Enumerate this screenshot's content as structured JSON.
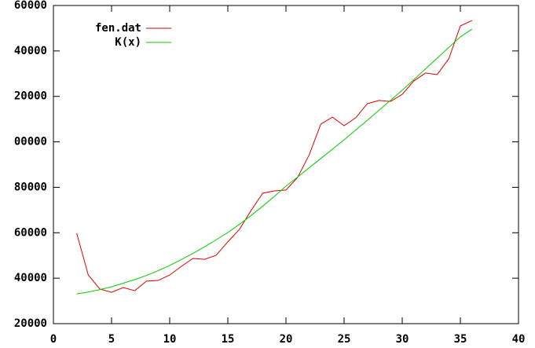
{
  "chart_data": {
    "type": "line",
    "x": [
      2,
      3,
      4,
      5,
      6,
      7,
      8,
      9,
      10,
      11,
      12,
      13,
      14,
      15,
      16,
      17,
      18,
      19,
      20,
      21,
      22,
      23,
      24,
      25,
      26,
      27,
      28,
      29,
      30,
      31,
      32,
      33,
      34,
      35,
      36
    ],
    "series": [
      {
        "name": "fen.dat",
        "color": "#dd0000",
        "values": [
          59800,
          41400,
          35200,
          33800,
          35900,
          34500,
          38700,
          39000,
          41400,
          45200,
          48700,
          48300,
          50100,
          56000,
          61500,
          69800,
          77400,
          78400,
          78800,
          84300,
          94300,
          107800,
          110900,
          107100,
          110600,
          116800,
          118200,
          117800,
          120900,
          126800,
          130300,
          129600,
          136500,
          151000,
          153400
        ]
      },
      {
        "name": "K(x)",
        "color": "#00cc00",
        "values": [
          33100,
          33900,
          35000,
          36200,
          37800,
          39400,
          41200,
          43300,
          45600,
          48200,
          50900,
          53800,
          56900,
          60100,
          63700,
          67600,
          71700,
          76000,
          80500,
          84500,
          88600,
          92700,
          96800,
          100900,
          105200,
          109500,
          113900,
          118300,
          122700,
          127400,
          132100,
          136800,
          141500,
          146200,
          149600
        ]
      }
    ],
    "xlim": [
      0,
      40
    ],
    "xticks": [
      0,
      5,
      10,
      15,
      20,
      25,
      30,
      35,
      40
    ],
    "ylim": [
      20000,
      160000
    ],
    "yticks": [
      20000,
      40000,
      60000,
      80000,
      {
        "value": 100000,
        "label": "00000"
      },
      {
        "value": 120000,
        "label": "20000"
      },
      {
        "value": 140000,
        "label": "40000"
      },
      {
        "value": 160000,
        "label": "60000"
      }
    ],
    "legend": "top-left"
  }
}
